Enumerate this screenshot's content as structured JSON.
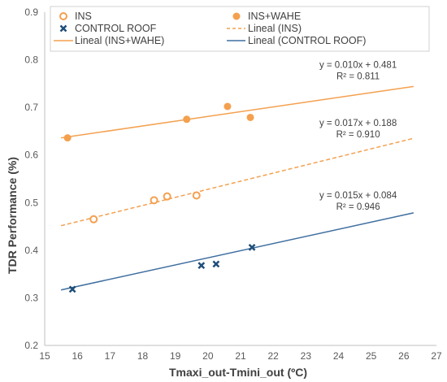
{
  "chart_data": {
    "type": "scatter",
    "title": "",
    "xlabel": "Tmaxi_out-Tmini_out (ºC)",
    "ylabel": "TDR Performance (%)",
    "xlim": [
      15,
      27
    ],
    "ylim": [
      0.2,
      0.9
    ],
    "x_ticks": [
      15,
      16,
      17,
      18,
      19,
      20,
      21,
      22,
      23,
      24,
      25,
      26,
      27
    ],
    "y_ticks": [
      0.2,
      0.3,
      0.4,
      0.5,
      0.6,
      0.7,
      0.8,
      0.9
    ],
    "x_tick_labels": [
      "15",
      "16",
      "17",
      "18",
      "19",
      "20",
      "21",
      "22",
      "23",
      "24",
      "25",
      "26",
      "27"
    ],
    "y_tick_labels": [
      "0.2",
      "0.3",
      "0.4",
      "0.5",
      "0.6",
      "0.7",
      "0.8",
      "0.9"
    ],
    "grid": false,
    "legend_position": "top",
    "series": [
      {
        "name": "INS",
        "marker": "open-circle",
        "color": "#F4A04F",
        "points": [
          {
            "x": 16.5,
            "y": 0.465
          },
          {
            "x": 18.35,
            "y": 0.505
          },
          {
            "x": 18.75,
            "y": 0.513
          },
          {
            "x": 19.65,
            "y": 0.515
          }
        ]
      },
      {
        "name": "INS+WAHE",
        "marker": "filled-circle",
        "color": "#F4A04F",
        "points": [
          {
            "x": 15.7,
            "y": 0.636
          },
          {
            "x": 19.35,
            "y": 0.675
          },
          {
            "x": 20.6,
            "y": 0.702
          },
          {
            "x": 21.3,
            "y": 0.679
          }
        ]
      },
      {
        "name": "CONTROL ROOF",
        "marker": "x",
        "color": "#1F4E79",
        "points": [
          {
            "x": 15.85,
            "y": 0.318
          },
          {
            "x": 19.8,
            "y": 0.368
          },
          {
            "x": 20.25,
            "y": 0.371
          },
          {
            "x": 21.35,
            "y": 0.406
          }
        ]
      }
    ],
    "trendlines": [
      {
        "name": "Lineal (INS)",
        "color": "#F4A04F",
        "dashed": true,
        "slope": 0.017,
        "intercept": 0.188,
        "x_range": [
          15.5,
          26.3
        ],
        "equation": "y = 0.017x + 0.188",
        "r2": "R² = 0.910"
      },
      {
        "name": "Lineal (INS+WAHE)",
        "color": "#F4A04F",
        "dashed": false,
        "slope": 0.01,
        "intercept": 0.481,
        "x_range": [
          15.5,
          26.3
        ],
        "equation": "y = 0.010x + 0.481",
        "r2": "R² = 0.811"
      },
      {
        "name": "Lineal (CONTROL ROOF)",
        "color": "#3F6FA0",
        "dashed": false,
        "slope": 0.015,
        "intercept": 0.084,
        "x_range": [
          15.5,
          26.3
        ],
        "equation": "y = 0.015x + 0.084",
        "r2": "R² = 0.946"
      }
    ],
    "legend": [
      {
        "label": "INS",
        "symbol": "open-circle"
      },
      {
        "label": "INS+WAHE",
        "symbol": "filled-circle"
      },
      {
        "label": "CONTROL ROOF",
        "symbol": "x"
      },
      {
        "label": "Lineal (INS)",
        "symbol": "dashed-line"
      },
      {
        "label": "Lineal (INS+WAHE)",
        "symbol": "solid-line-orange"
      },
      {
        "label": "Lineal (CONTROL ROOF)",
        "symbol": "solid-line-blue"
      }
    ]
  },
  "colors": {
    "orange": "#F4A04F",
    "navy": "#1F4E79",
    "blue_line": "#3F6FA0",
    "axis": "#BFBFBF"
  }
}
